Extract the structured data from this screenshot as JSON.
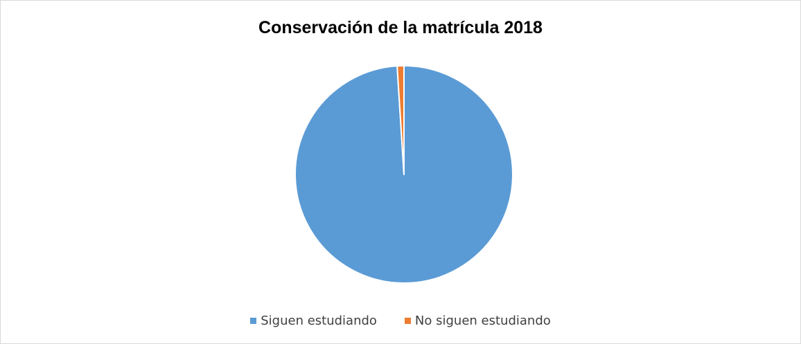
{
  "chart_data": {
    "type": "pie",
    "title": "Conservación de la matrícula 2018",
    "categories": [
      "Siguen estudiando",
      "No siguen estudiando"
    ],
    "values": [
      99.0,
      1.0
    ],
    "colors": [
      "#5b9bd5",
      "#ed7d31"
    ],
    "slice_border_color": "#ffffff",
    "legend_position": "bottom"
  }
}
